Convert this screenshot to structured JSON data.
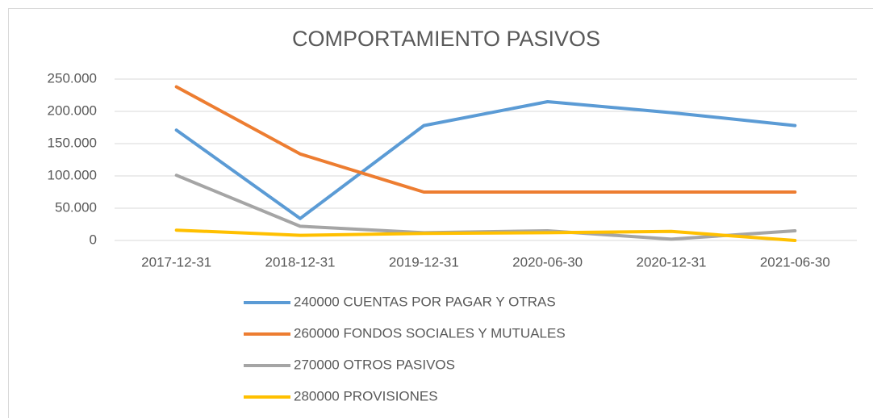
{
  "chart_data": {
    "type": "line",
    "title": "COMPORTAMIENTO PASIVOS",
    "categories": [
      "2017-12-31",
      "2018-12-31",
      "2019-12-31",
      "2020-06-30",
      "2020-12-31",
      "2021-06-30"
    ],
    "series": [
      {
        "name": "240000 CUENTAS POR PAGAR Y OTRAS",
        "color": "#5b9bd5",
        "values": [
          171000,
          34000,
          178000,
          215000,
          198000,
          178000
        ]
      },
      {
        "name": "260000 FONDOS SOCIALES Y MUTUALES",
        "color": "#ed7d31",
        "values": [
          238000,
          134000,
          75000,
          75000,
          75000,
          75000
        ]
      },
      {
        "name": "270000 OTROS PASIVOS",
        "color": "#a5a5a5",
        "values": [
          101000,
          22000,
          12000,
          15000,
          2000,
          15000
        ]
      },
      {
        "name": "280000 PROVISIONES",
        "color": "#ffc000",
        "values": [
          16000,
          8000,
          11000,
          12000,
          14000,
          0
        ]
      }
    ],
    "ylim": [
      0,
      250000
    ],
    "yticks": [
      0,
      {
        "value": 50000,
        "label": "50.000"
      },
      {
        "value": 100000,
        "label": "100.000"
      },
      {
        "value": 150000,
        "label": "150.000"
      },
      {
        "value": 200000,
        "label": "200.000"
      },
      {
        "value": 250000,
        "label": "250.000"
      }
    ],
    "grid": true,
    "legend": "bottom"
  }
}
